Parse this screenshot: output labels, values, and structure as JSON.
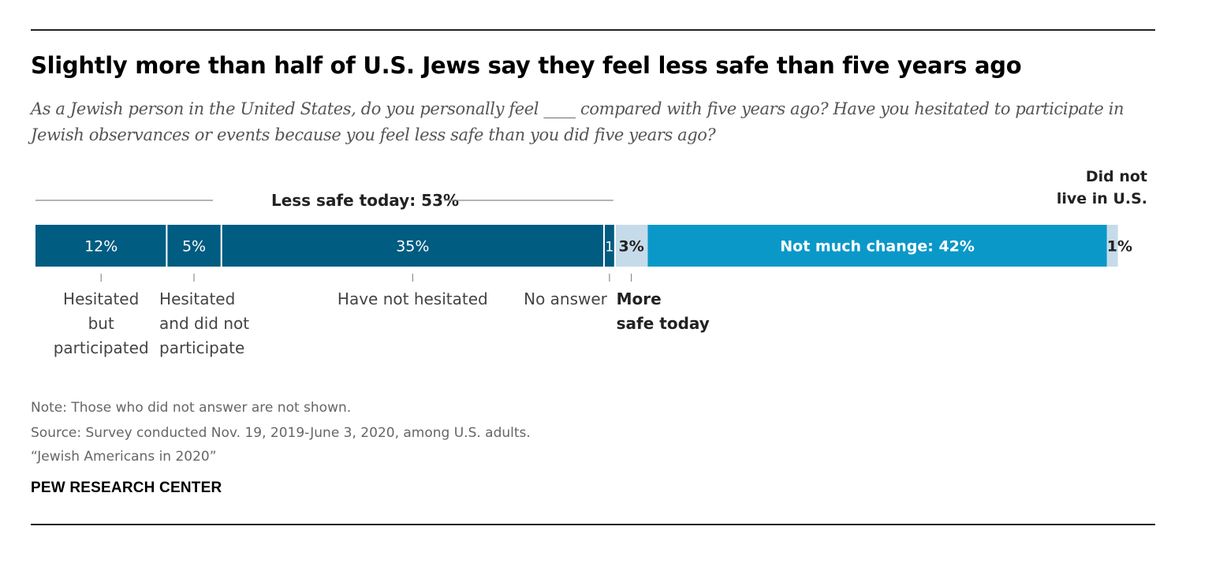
{
  "title": "Slightly more than half of U.S. Jews say they feel less safe than five years ago",
  "subtitle": "As a Jewish person in the United States, do you personally feel ____ compared with five years ago? Have you hesitated to participate in Jewish observances or events because you feel less safe than you did five years ago?",
  "notes": {
    "note": "Note: Those who did not answer are not shown.",
    "source": "Source: Survey conducted Nov. 19, 2019-June 3, 2020, among U.S. adults.",
    "report": "“Jewish Americans in 2020”"
  },
  "brand": "PEW RESEARCH CENTER",
  "chart_data": {
    "type": "bar",
    "orientation": "horizontal-stacked",
    "xlim": [
      0,
      100
    ],
    "group_label": "Less safe today: 53%",
    "segments": [
      {
        "name": "Hesitated but participated",
        "value": 12,
        "label": "12%",
        "category_label": [
          "Hesitated",
          "but",
          "participated"
        ],
        "color": "#005c81"
      },
      {
        "name": "Hesitated and did not participate",
        "value": 5,
        "label": "5%",
        "category_label": [
          "Hesitated",
          "and did not",
          "participate"
        ],
        "color": "#005c81"
      },
      {
        "name": "Have not hesitated",
        "value": 35,
        "label": "35%",
        "category_label": [
          "Have not hesitated"
        ],
        "color": "#005c81"
      },
      {
        "name": "No answer",
        "value": 1,
        "label": "1",
        "category_label": [
          "No answer"
        ],
        "color": "#005c81"
      },
      {
        "name": "More safe today",
        "value": 3,
        "label": "3%",
        "category_label": [
          "More",
          "safe today"
        ],
        "color": "#c6dbe9"
      },
      {
        "name": "Not much change",
        "value": 42,
        "label": "Not much change: 42%",
        "category_label": [],
        "color": "#0a98c9"
      },
      {
        "name": "Did not live in U.S.",
        "value": 1,
        "label": "1%",
        "category_label": [
          "Did not",
          "live in U.S."
        ],
        "color": "#c6dbe9"
      }
    ]
  }
}
